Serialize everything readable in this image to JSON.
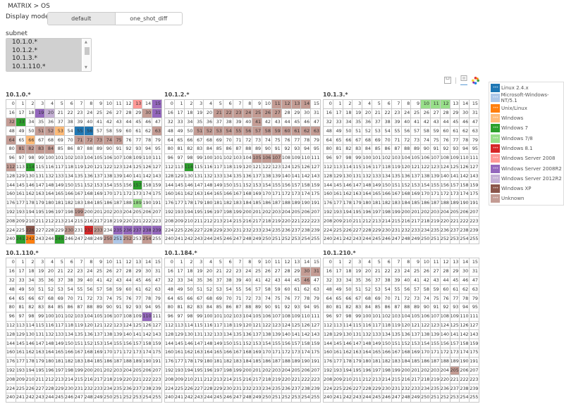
{
  "breadcrumb": "MATRIX > OS",
  "display_mode": {
    "label": "Display mode",
    "options": [
      "default",
      "one_shot_diff"
    ],
    "selected": "default"
  },
  "subnet": {
    "label": "subnet",
    "options": [
      "10.1.0.*",
      "10.1.2.*",
      "10.1.3.*",
      "10.1.110.*"
    ]
  },
  "toolbar": {
    "icons": [
      "save-icon",
      "data-view-icon",
      "color-palette-icon"
    ]
  },
  "legend": [
    {
      "label": "Linux 2.4.x",
      "color": "#1f77b4"
    },
    {
      "label": "Microsoft-Windows-NT/5.1",
      "color": "#aec7e8"
    },
    {
      "label": "Unix/Linux",
      "color": "#ff7f0e"
    },
    {
      "label": "Windows",
      "color": "#ffbb78"
    },
    {
      "label": "Windows 7",
      "color": "#2ca02c"
    },
    {
      "label": "Windows 7/8",
      "color": "#98df8a"
    },
    {
      "label": "Windows 8.1",
      "color": "#d62728"
    },
    {
      "label": "Windows Server 2008",
      "color": "#ff9896"
    },
    {
      "label": "Windows Server 2008R2",
      "color": "#9467bd"
    },
    {
      "label": "Windows Server 2012R2",
      "color": "#c5b0d5"
    },
    {
      "label": "Windows XP",
      "color": "#8c564b"
    },
    {
      "label": "Unknown",
      "color": "#c49c94"
    }
  ],
  "grids": [
    {
      "title": "10.1.0.*",
      "hosts": {
        "Linux 2.4.x": [
          55,
          56
        ],
        "Microsoft-Windows-NT/5.1": [
          251
        ],
        "Unix/Linux": [
          242
        ],
        "Windows": [
          53,
          66
        ],
        "Windows 7": [
          33,
          114,
          157,
          241,
          245
        ],
        "Windows 7/8": [
          189
        ],
        "Windows 8.1": [
          232
        ],
        "Windows Server 2008": [
          13
        ],
        "Windows Server 2008R2": [
          15,
          19,
          31,
          235,
          236,
          237,
          238,
          239
        ],
        "Windows Server 2012R2": [
          20
        ],
        "Windows XP": [
          226
        ],
        "Unknown": [
          30,
          32,
          51,
          52,
          63,
          64,
          71,
          72,
          73,
          74,
          75,
          81,
          82,
          83,
          84,
          112,
          199,
          230,
          233,
          250,
          252,
          254
        ]
      }
    },
    {
      "title": "10.1.2.*",
      "hosts": {
        "Windows 7": [
          114
        ],
        "Unknown": [
          11,
          12,
          13,
          14,
          21,
          22,
          23,
          24,
          25,
          26,
          27,
          41,
          51,
          52,
          53,
          54,
          55,
          56,
          57,
          58,
          59,
          60,
          61,
          62,
          63,
          105,
          106,
          107
        ]
      }
    },
    {
      "title": "10.1.3.*",
      "hosts": {
        "Windows 7/8": [
          10,
          11,
          12
        ]
      }
    },
    {
      "title": "10.1.110.*",
      "hosts": {
        "Windows Server 2008R2": [
          110
        ]
      }
    },
    {
      "title": "10.1.184.*",
      "hosts": {
        "Unknown": [
          30,
          31,
          46
        ]
      }
    },
    {
      "title": "10.1.210.*",
      "hosts": {
        "Unknown": [
          205
        ]
      }
    }
  ]
}
